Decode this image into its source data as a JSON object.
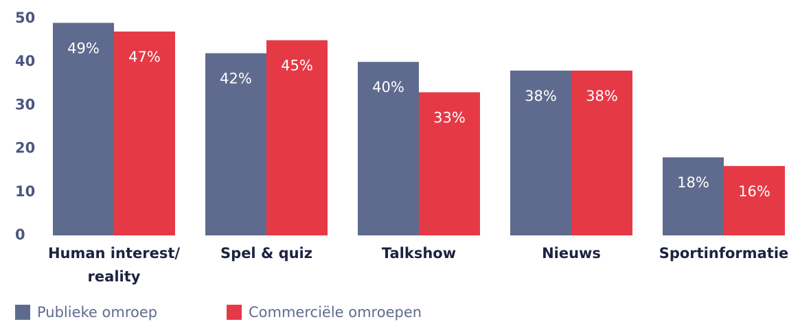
{
  "chart_data": {
    "type": "bar",
    "categories": [
      "Human interest/ reality",
      "Spel & quiz",
      "Talkshow",
      "Nieuws",
      "Sportinformatie"
    ],
    "series": [
      {
        "name": "Publieke omroep",
        "color": "#5f6b8e",
        "values": [
          49,
          42,
          40,
          38,
          18
        ],
        "value_labels": [
          "49%",
          "42%",
          "40%",
          "38%",
          "18%"
        ]
      },
      {
        "name": "Commerciële omroepen",
        "color": "#e63946",
        "values": [
          47,
          45,
          33,
          38,
          16
        ],
        "value_labels": [
          "47%",
          "45%",
          "33%",
          "38%",
          "16%"
        ]
      }
    ],
    "ylim": [
      0,
      50
    ],
    "yticks": [
      0,
      10,
      20,
      30,
      40,
      50
    ],
    "grid": false,
    "legend": "bottom"
  }
}
